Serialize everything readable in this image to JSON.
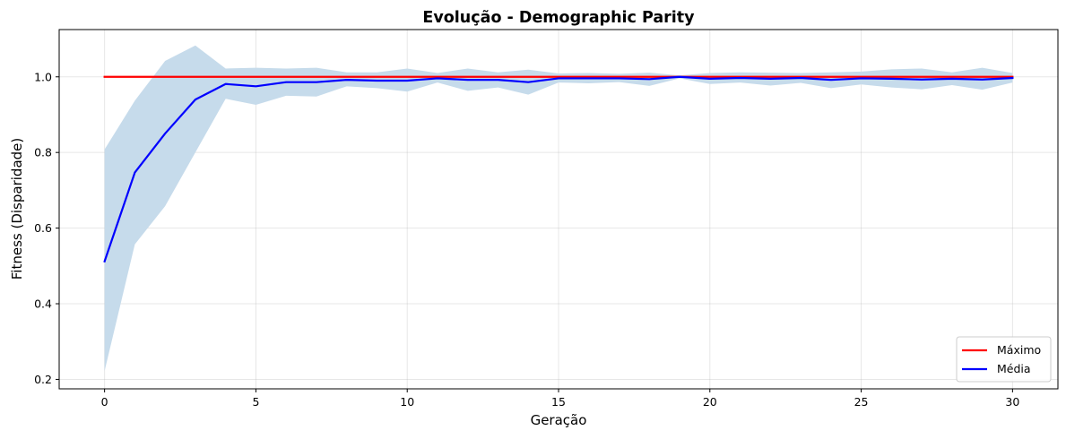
{
  "chart_data": {
    "type": "line",
    "title": "Evolução - Demographic Parity",
    "xlabel": "Geração",
    "ylabel": "Fitness (Disparidade)",
    "xlim": [
      -1.5,
      31.5
    ],
    "ylim": [
      0.175,
      1.125
    ],
    "xticks": [
      0,
      5,
      10,
      15,
      20,
      25,
      30
    ],
    "yticks": [
      0.2,
      0.4,
      0.6,
      0.8,
      1.0
    ],
    "xtick_labels": [
      "0",
      "5",
      "10",
      "15",
      "20",
      "25",
      "30"
    ],
    "ytick_labels": [
      "0.2",
      "0.4",
      "0.6",
      "0.8",
      "1.0"
    ],
    "grid": true,
    "legend_position": "bottom-right",
    "x": [
      0,
      1,
      2,
      3,
      4,
      5,
      6,
      7,
      8,
      9,
      10,
      11,
      12,
      13,
      14,
      15,
      16,
      17,
      18,
      19,
      20,
      21,
      22,
      23,
      24,
      25,
      26,
      27,
      28,
      29,
      30
    ],
    "series": [
      {
        "name": "Máximo",
        "color": "#ff0000",
        "values": [
          1.0,
          1.0,
          1.0,
          1.0,
          1.0,
          1.0,
          1.0,
          1.0,
          1.0,
          1.0,
          1.0,
          1.0,
          1.0,
          1.0,
          1.0,
          1.0,
          1.0,
          1.0,
          1.0,
          1.0,
          1.0,
          1.0,
          1.0,
          1.0,
          1.0,
          1.0,
          1.0,
          1.0,
          1.0,
          1.0,
          1.0
        ]
      },
      {
        "name": "Média",
        "color": "#0000ff",
        "values": [
          0.512,
          0.747,
          0.85,
          0.94,
          0.981,
          0.975,
          0.986,
          0.986,
          0.992,
          0.99,
          0.99,
          0.996,
          0.992,
          0.992,
          0.986,
          0.996,
          0.996,
          0.996,
          0.994,
          1.0,
          0.995,
          0.997,
          0.995,
          0.997,
          0.992,
          0.996,
          0.995,
          0.993,
          0.995,
          0.993,
          0.997
        ]
      }
    ],
    "band": {
      "color": "#c6dbeb",
      "lower": [
        0.222,
        0.557,
        0.658,
        0.8,
        0.942,
        0.926,
        0.95,
        0.948,
        0.975,
        0.97,
        0.961,
        0.985,
        0.963,
        0.972,
        0.953,
        0.985,
        0.983,
        0.986,
        0.976,
        0.996,
        0.981,
        0.985,
        0.977,
        0.984,
        0.97,
        0.98,
        0.972,
        0.967,
        0.978,
        0.966,
        0.985
      ],
      "upper": [
        0.808,
        0.937,
        1.042,
        1.083,
        1.022,
        1.024,
        1.022,
        1.024,
        1.012,
        1.012,
        1.022,
        1.01,
        1.022,
        1.012,
        1.019,
        1.009,
        1.01,
        1.008,
        1.011,
        1.004,
        1.01,
        1.012,
        1.011,
        1.01,
        1.012,
        1.014,
        1.02,
        1.022,
        1.012,
        1.024,
        1.01
      ]
    }
  }
}
